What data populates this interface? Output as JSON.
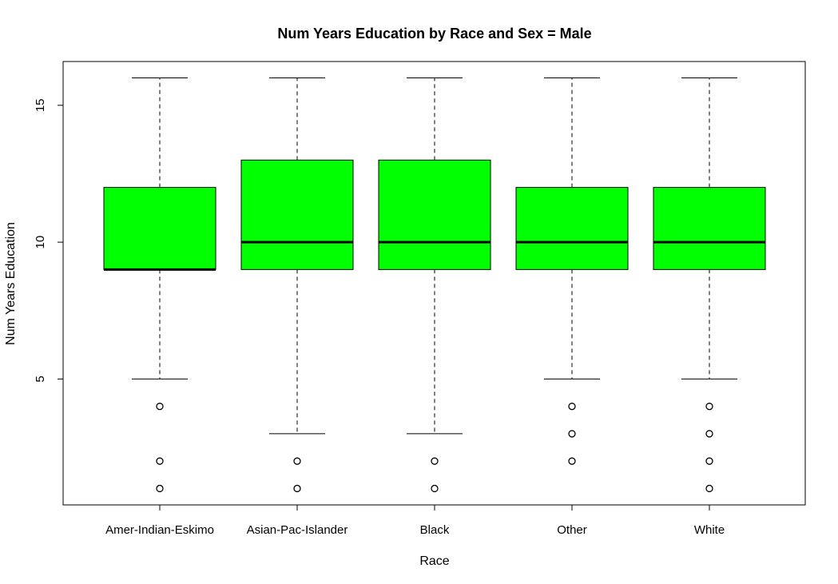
{
  "chart_data": {
    "type": "boxplot",
    "title": "Num Years Education by Race and Sex = Male",
    "xlabel": "Race",
    "ylabel": "Num Years Education",
    "ylim": [
      0.4,
      16.6
    ],
    "yticks": [
      5,
      10,
      15
    ],
    "box_color": "#00ff00",
    "grid": false,
    "categories": [
      "Amer-Indian-Eskimo",
      "Asian-Pac-Islander",
      "Black",
      "Other",
      "White"
    ],
    "boxes": [
      {
        "category": "Amer-Indian-Eskimo",
        "whisker_low": 5,
        "q1": 9,
        "median": 9,
        "q3": 12,
        "whisker_high": 16,
        "outliers": [
          4,
          2,
          1
        ]
      },
      {
        "category": "Asian-Pac-Islander",
        "whisker_low": 3,
        "q1": 9,
        "median": 10,
        "q3": 13,
        "whisker_high": 16,
        "outliers": [
          2,
          1
        ]
      },
      {
        "category": "Black",
        "whisker_low": 3,
        "q1": 9,
        "median": 10,
        "q3": 13,
        "whisker_high": 16,
        "outliers": [
          2,
          1
        ]
      },
      {
        "category": "Other",
        "whisker_low": 5,
        "q1": 9,
        "median": 10,
        "q3": 12,
        "whisker_high": 16,
        "outliers": [
          4,
          3,
          2
        ]
      },
      {
        "category": "White",
        "whisker_low": 5,
        "q1": 9,
        "median": 10,
        "q3": 12,
        "whisker_high": 16,
        "outliers": [
          4,
          3,
          2,
          1
        ]
      }
    ]
  }
}
